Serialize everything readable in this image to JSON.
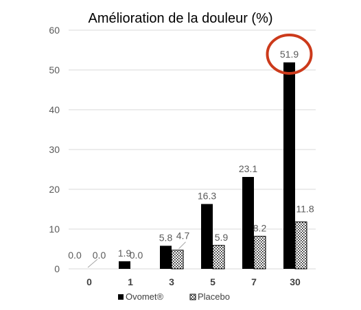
{
  "chart_data": {
    "type": "bar",
    "title": "Amélioration de la douleur (%)",
    "xlabel": "",
    "ylabel": "",
    "categories": [
      "0",
      "1",
      "3",
      "5",
      "7",
      "30"
    ],
    "ylim": [
      0,
      60
    ],
    "yticks": [
      0,
      10,
      20,
      30,
      40,
      50,
      60
    ],
    "grid": true,
    "legend_position": "bottom",
    "series": [
      {
        "name": "Ovomet®",
        "values": [
          0.0,
          1.9,
          5.8,
          16.3,
          23.1,
          51.9
        ],
        "labels": [
          "0.0",
          "1.9",
          "5.8",
          "16.3",
          "23.1",
          "51.9"
        ],
        "fill": "solid",
        "color": "#000000"
      },
      {
        "name": "Placebo",
        "values": [
          0.0,
          0.0,
          4.7,
          5.9,
          8.2,
          11.8
        ],
        "labels": [
          "0.0",
          "0.0",
          "4.7",
          "5.9",
          "8.2",
          "11.8"
        ],
        "fill": "dotted-pattern",
        "color": "#000000"
      }
    ],
    "highlight": {
      "series": 0,
      "category": 5,
      "shape": "circle",
      "color": "#cc3a1b"
    }
  }
}
